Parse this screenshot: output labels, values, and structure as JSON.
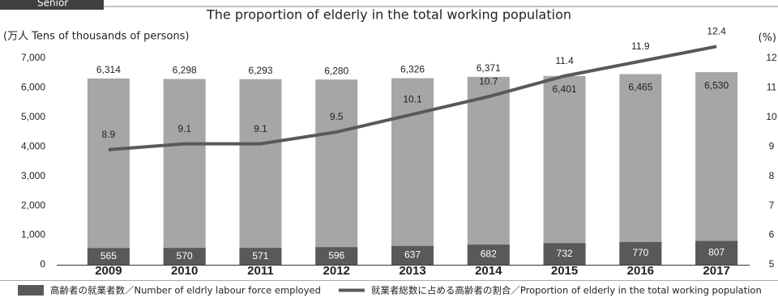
{
  "chart_data": {
    "type": "bar",
    "tag": "Senior",
    "title": "The proportion of elderly in the total working population",
    "y_unit": "(万人 Tens of thousands of persons)",
    "y2_unit": "(%)",
    "categories": [
      "2009",
      "2010",
      "2011",
      "2012",
      "2013",
      "2014",
      "2015",
      "2016",
      "2017"
    ],
    "series": [
      {
        "color": "#a6a6a6",
        "values": [
          6314,
          6298,
          6293,
          6280,
          6326,
          6371,
          6401,
          6465,
          6530
        ],
        "value_labels": [
          "6,314",
          "6,298",
          "6,293",
          "6,280",
          "6,326",
          "6,371",
          "6,401",
          "6,465",
          "6,530"
        ]
      },
      {
        "name": "高齢者の就業者数／Number of eldrly labour force employed",
        "color": "#595959",
        "values": [
          565,
          570,
          571,
          596,
          637,
          682,
          732,
          770,
          807
        ]
      },
      {
        "name": "就業者総数に占める高齢者の割合／Proportion of elderly in the total working population",
        "color": "#595959",
        "type": "line",
        "axis": "y2",
        "values": [
          8.9,
          9.1,
          9.1,
          9.5,
          10.1,
          10.7,
          11.4,
          11.9,
          12.4
        ]
      }
    ],
    "ylim": [
      0,
      7000
    ],
    "yticks": [
      0,
      {
        "value": 1000,
        "label": "1,000"
      },
      {
        "value": 2000,
        "label": "2,000"
      },
      {
        "value": 3000,
        "label": "3,000"
      },
      {
        "value": 4000,
        "label": "4,000"
      },
      {
        "value": 5000,
        "label": "5,000"
      },
      {
        "value": 6000,
        "label": "6,000"
      },
      {
        "value": 7000,
        "label": "7,000"
      }
    ],
    "y2lim": [
      5,
      12
    ],
    "y2ticks": [
      5,
      6,
      7,
      8,
      9,
      10,
      11,
      12
    ],
    "grid": false
  }
}
